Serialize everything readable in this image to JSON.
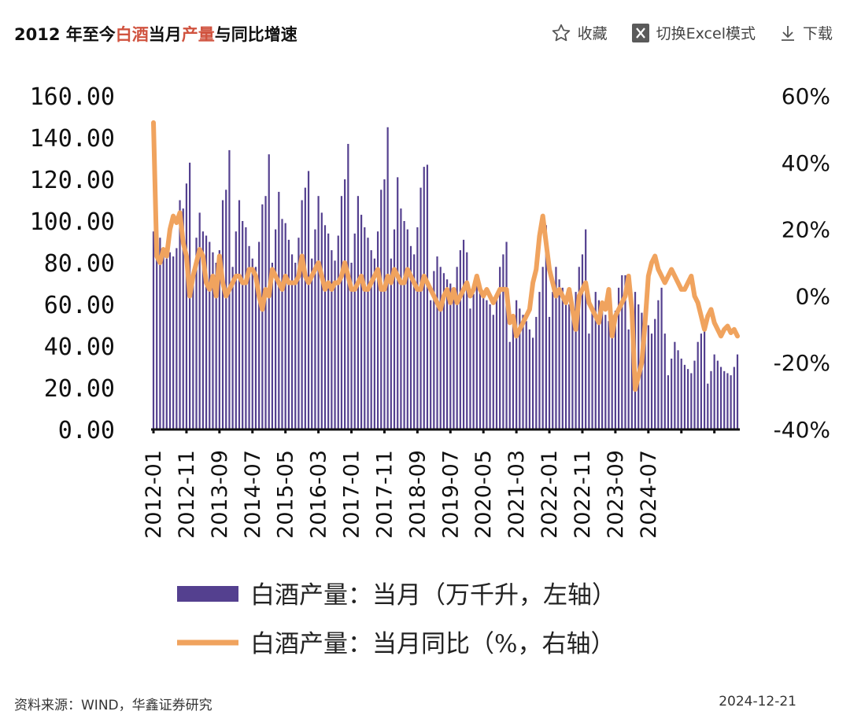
{
  "header": {
    "title_parts": [
      "2012 年至今",
      "白酒",
      "当月",
      "产量",
      "与同比增速"
    ],
    "actions": {
      "favorite": "收藏",
      "excel": "切换Excel模式",
      "download": "下载"
    }
  },
  "footer": {
    "source": "资料来源：WIND，华鑫证券研究",
    "date": "2024-12-21"
  },
  "colors": {
    "bar": "#54408f",
    "line": "#f0a35e",
    "title_highlight": "#d0533f"
  },
  "chart_data": {
    "type": "bar",
    "title": "2012 年至今白酒当月产量与同比增速",
    "x_start": "2012-01",
    "xtick_labels": [
      "2012-01",
      "2012-11",
      "2013-09",
      "2014-07",
      "2015-05",
      "2016-03",
      "2017-01",
      "2017-11",
      "2018-09",
      "2019-07",
      "2020-05",
      "2021-03",
      "2022-01",
      "2022-11",
      "2023-09",
      "2024-07"
    ],
    "y_left": {
      "min": 0,
      "max": 160,
      "ticks": [
        "0.00",
        "20.00",
        "40.00",
        "60.00",
        "80.00",
        "100.00",
        "120.00",
        "140.00",
        "160.00"
      ]
    },
    "y_right": {
      "min": -40,
      "max": 60,
      "ticks": [
        "-40%",
        "-20%",
        "0%",
        "20%",
        "40%",
        "60%"
      ]
    },
    "series": [
      {
        "name": "白酒产量：当月（万千升，左轴）",
        "type": "bar",
        "axis": "left",
        "values": [
          95,
          88,
          92,
          84,
          82,
          85,
          83,
          87,
          110,
          106,
          118,
          128,
          75,
          92,
          104,
          95,
          93,
          90,
          85,
          80,
          86,
          110,
          115,
          134,
          78,
          95,
          110,
          100,
          97,
          88,
          82,
          78,
          90,
          108,
          112,
          132,
          80,
          96,
          114,
          101,
          99,
          91,
          84,
          80,
          92,
          110,
          116,
          124,
          82,
          96,
          112,
          104,
          98,
          94,
          86,
          81,
          93,
          112,
          120,
          137,
          80,
          94,
          112,
          103,
          97,
          92,
          86,
          82,
          95,
          115,
          120,
          145,
          82,
          96,
          121,
          106,
          100,
          96,
          88,
          84,
          97,
          116,
          126,
          127,
          62,
          76,
          83,
          78,
          75,
          72,
          70,
          66,
          78,
          86,
          91,
          85,
          58,
          65,
          73,
          70,
          66,
          62,
          60,
          55,
          65,
          78,
          84,
          90,
          42,
          50,
          62,
          58,
          55,
          52,
          48,
          44,
          54,
          66,
          78,
          98,
          54,
          66,
          78,
          72,
          68,
          64,
          60,
          56,
          66,
          78,
          84,
          96,
          46,
          56,
          66,
          62,
          58,
          55,
          52,
          48,
          57,
          68,
          74,
          74,
          48,
          55,
          66,
          60,
          56,
          52,
          50,
          46,
          53,
          62,
          68,
          46,
          26,
          34,
          42,
          38,
          34,
          31,
          29,
          27,
          33,
          42,
          46,
          52,
          22,
          28,
          36,
          33,
          30,
          28,
          27,
          26,
          30,
          36
        ]
      },
      {
        "name": "白酒产量：当月同比（%，右轴）",
        "type": "line",
        "axis": "right",
        "values": [
          52,
          12,
          10,
          14,
          12,
          20,
          24,
          22,
          25,
          16,
          12,
          0,
          6,
          10,
          14,
          12,
          4,
          2,
          6,
          0,
          12,
          4,
          0,
          2,
          4,
          6,
          6,
          4,
          4,
          8,
          8,
          6,
          0,
          -4,
          2,
          0,
          8,
          6,
          4,
          2,
          6,
          4,
          4,
          4,
          6,
          12,
          6,
          4,
          6,
          8,
          10,
          6,
          2,
          4,
          2,
          4,
          4,
          6,
          10,
          6,
          2,
          2,
          4,
          6,
          2,
          2,
          4,
          6,
          8,
          2,
          2,
          6,
          4,
          8,
          6,
          4,
          4,
          8,
          6,
          4,
          2,
          2,
          6,
          4,
          2,
          0,
          -2,
          -4,
          0,
          2,
          -2,
          2,
          -2,
          0,
          2,
          4,
          0,
          2,
          6,
          2,
          0,
          2,
          0,
          -2,
          0,
          2,
          2,
          2,
          -8,
          -6,
          -12,
          -10,
          -8,
          -6,
          -4,
          4,
          8,
          18,
          24,
          16,
          8,
          4,
          0,
          2,
          0,
          -2,
          2,
          -4,
          -10,
          0,
          2,
          4,
          -2,
          -4,
          -6,
          -8,
          -2,
          -4,
          2,
          -12,
          -6,
          -4,
          -2,
          0,
          6,
          -4,
          -28,
          -24,
          -20,
          -8,
          6,
          10,
          12,
          8,
          6,
          4,
          6,
          8,
          6,
          4,
          2,
          2,
          4,
          6,
          0,
          -2,
          -6,
          -10,
          -6,
          -4,
          -8,
          -10,
          -12,
          -10,
          -9,
          -11,
          -10,
          -12
        ]
      }
    ],
    "legend": [
      "白酒产量：当月（万千升，左轴）",
      "白酒产量：当月同比（%，右轴）"
    ],
    "legend_position": "bottom",
    "grid": false
  }
}
